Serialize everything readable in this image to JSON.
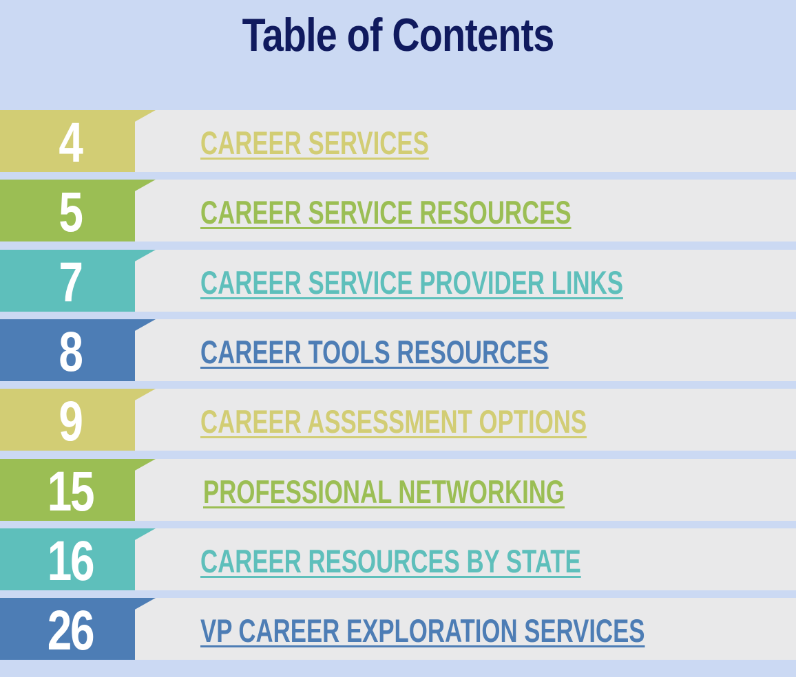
{
  "title": "Table of Contents",
  "colors": {
    "background": "#cbd9f3",
    "title": "#101a5e",
    "row_bar": "#e9e9ea",
    "khaki": "#d2cd74",
    "green": "#9bbe54",
    "teal": "#5ebfbb",
    "blue": "#4d7db5"
  },
  "entries": [
    {
      "page": "4",
      "label": "CAREER SERVICES",
      "color": "#d2cd74"
    },
    {
      "page": "5",
      "label": "CAREER SERVICE RESOURCES",
      "color": "#9bbe54"
    },
    {
      "page": "7",
      "label": "CAREER SERVICE PROVIDER LINKS",
      "color": "#5ebfbb"
    },
    {
      "page": "8",
      "label": "CAREER TOOLS RESOURCES",
      "color": "#4d7db5"
    },
    {
      "page": "9",
      "label": "CAREER ASSESSMENT OPTIONS",
      "color": "#d2cd74"
    },
    {
      "page": "15",
      "label": "PROFESSIONAL NETWORKING",
      "color": "#9bbe54"
    },
    {
      "page": "16",
      "label": "CAREER RESOURCES BY STATE",
      "color": "#5ebfbb"
    },
    {
      "page": "26",
      "label": "VP CAREER EXPLORATION SERVICES",
      "color": "#4d7db5"
    }
  ]
}
